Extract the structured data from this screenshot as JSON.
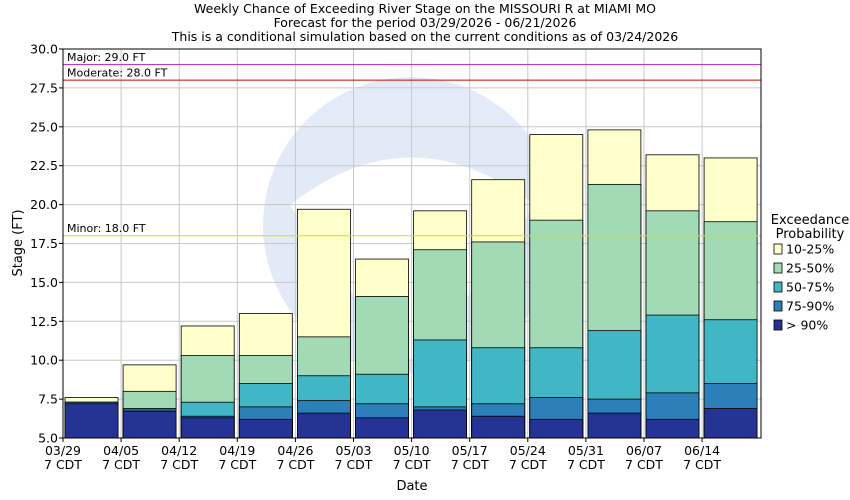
{
  "chart_data": {
    "type": "bar",
    "title_lines": [
      "Weekly Chance of Exceeding River Stage on the MISSOURI R at MIAMI MO",
      "Forecast for the period 03/29/2026 - 06/21/2026",
      "This is a conditional simulation based on the current conditions as of 03/24/2026"
    ],
    "xlabel": "Date",
    "ylabel": "Stage (FT)",
    "ylim": [
      5.0,
      30.0
    ],
    "yticks": [
      "5.0",
      "7.5",
      "10.0",
      "12.5",
      "15.0",
      "17.5",
      "20.0",
      "22.5",
      "25.0",
      "27.5",
      "30.0"
    ],
    "tick_values": [
      5.0,
      7.5,
      10.0,
      12.5,
      15.0,
      17.5,
      20.0,
      22.5,
      25.0,
      27.5,
      30.0
    ],
    "categories": [
      [
        "03/29",
        "7 CDT"
      ],
      [
        "04/05",
        "7 CDT"
      ],
      [
        "04/12",
        "7 CDT"
      ],
      [
        "04/19",
        "7 CDT"
      ],
      [
        "04/26",
        "7 CDT"
      ],
      [
        "05/03",
        "7 CDT"
      ],
      [
        "05/10",
        "7 CDT"
      ],
      [
        "05/17",
        "7 CDT"
      ],
      [
        "05/24",
        "7 CDT"
      ],
      [
        "05/31",
        "7 CDT"
      ],
      [
        "06/07",
        "7 CDT"
      ],
      [
        "06/14",
        "7 CDT"
      ]
    ],
    "legend": {
      "title_lines": [
        "Exceedance",
        "Probability"
      ],
      "entries": [
        {
          "label": "10-25%",
          "color": "#ffffcc"
        },
        {
          "label": "25-50%",
          "color": "#a1dab4"
        },
        {
          "label": "50-75%",
          "color": "#41b6c4"
        },
        {
          "label": "75-90%",
          "color": "#2c7fb8"
        },
        {
          "label": "> 90%",
          "color": "#253494"
        }
      ]
    },
    "flood_stages": [
      {
        "label": "Major: 29.0 FT",
        "value": 29.0,
        "color": "#cc33cc"
      },
      {
        "label": "Moderate: 28.0 FT",
        "value": 28.0,
        "color": "#cc0000"
      },
      {
        "label": "Minor: 18.0 FT",
        "value": 18.0,
        "color": "#dddd00"
      }
    ],
    "series": [
      {
        "name": "> 90%",
        "values": [
          7.2,
          6.7,
          6.3,
          6.2,
          6.6,
          6.3,
          6.8,
          6.4,
          6.2,
          6.6,
          6.2,
          6.9
        ]
      },
      {
        "name": "75-90%",
        "values": [
          7.3,
          6.8,
          6.4,
          7.0,
          7.4,
          7.2,
          7.0,
          7.2,
          7.6,
          7.5,
          7.9,
          8.5
        ]
      },
      {
        "name": "50-75%",
        "values": [
          7.3,
          6.9,
          7.3,
          8.5,
          9.0,
          9.1,
          11.3,
          10.8,
          10.8,
          11.9,
          12.9,
          12.6
        ]
      },
      {
        "name": "25-50%",
        "values": [
          7.3,
          8.0,
          10.3,
          10.3,
          11.5,
          14.1,
          17.1,
          17.6,
          19.0,
          21.3,
          19.6,
          18.9
        ]
      },
      {
        "name": "10-25%",
        "values": [
          7.6,
          9.7,
          12.2,
          13.0,
          19.7,
          16.5,
          19.6,
          21.6,
          24.5,
          24.8,
          23.2,
          23.0
        ]
      }
    ],
    "grid": true
  }
}
